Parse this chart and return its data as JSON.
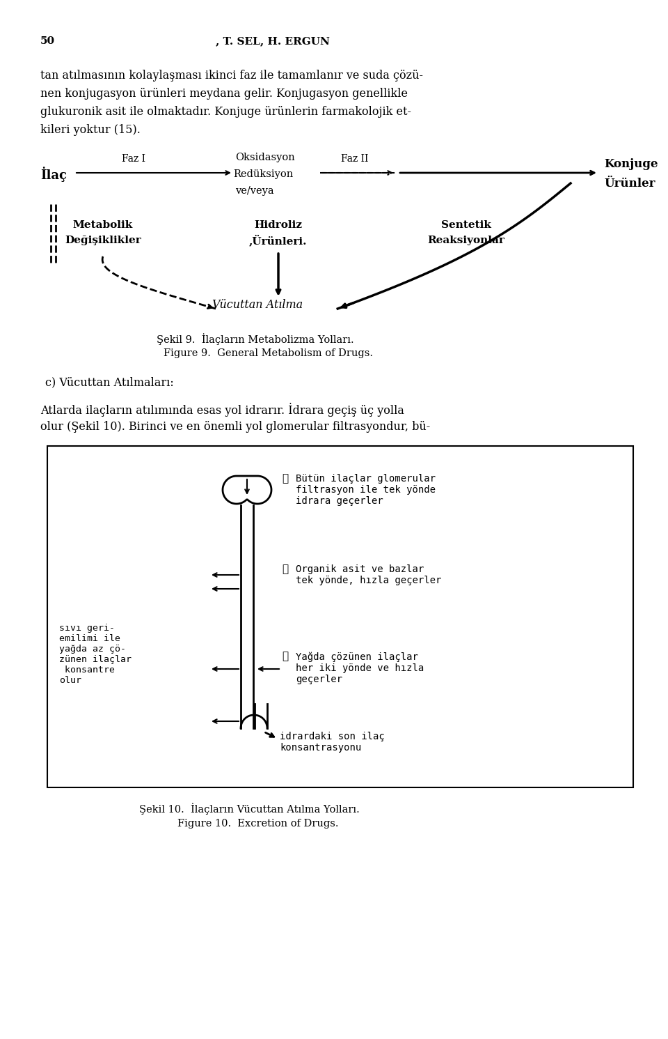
{
  "page_number": "50",
  "header": ", T. SEL, H. ERGUN",
  "body_text_lines": [
    "tan atılmasının kolaylaşması ikinci faz ile tamamlanır ve suda çözü-",
    "nen konjugasyon ürünleri meydana gelir. Konjugasyon genellikle",
    "glukuronik asit ile olmaktadır. Konjuge ürünlerin farmakolojik et-",
    "kileri yoktur (15)."
  ],
  "fig9_label_ilac": "İlaç",
  "fig9_label_faz1": "Faz I",
  "fig9_label_faz2": "Faz II",
  "fig9_label_oksidasyon": "Oksidasyon",
  "fig9_label_reduks": "Redüksiyon",
  "fig9_label_veveya": "ve/veya",
  "fig9_label_konjuge": "Konjuge",
  "fig9_label_urunler": "Ürünler",
  "fig9_label_metabolik": "Metabolik",
  "fig9_label_degisiklikler": "Değişiklikler",
  "fig9_label_hidroliz": "Hidroliz",
  "fig9_label_hidroliz2": ",Ürünleri.",
  "fig9_label_sentetik": "Sentetik",
  "fig9_label_reaksiyonlar": "Reaksiyonlar",
  "fig9_label_vucuttan": "Vücuttan Atılma",
  "fig9_caption1": "Şekil 9.  İlaçların Metabolizma Yolları.",
  "fig9_caption2": "Figure 9.  General Metabolism of Drugs.",
  "section_c": "c) Vücuttan Atılmaları:",
  "body_text2_lines": [
    "Atlarda ilaçların atılımında esas yol idrarır. İdrara geçiş üç yolla",
    "olur (Şekil 10). Birinci ve en önemli yol glomerular filtrasyondur, bü-"
  ],
  "fig10_text1_circle": "①",
  "fig10_text1": "Bütün ilaçlar glomerular\nfiltrasyon ile tek yönde\nidrara geçerler",
  "fig10_text2_circle": "②",
  "fig10_text2": "Organik asit ve bazlar\ntek yönde, hızla geçerler",
  "fig10_left_text": "sıvı geri-\nemilimi ile\nyağda az çö-\nzünen ilaçlar\n konsantre\nolur",
  "fig10_text3_circle": "③",
  "fig10_text3": "Yağda çözünen ilaçlar\nher iki yönde ve hızla\ngeçerler",
  "fig10_bottom_text": "idrardaki son ilaç\nkonsantrasyonu",
  "fig10_caption1": "Şekil 10.  İlaçların Vücuttan Atılma Yolları.",
  "fig10_caption2": "Figure 10.  Excretion of Drugs.",
  "bg_color": "#ffffff",
  "text_color": "#000000"
}
